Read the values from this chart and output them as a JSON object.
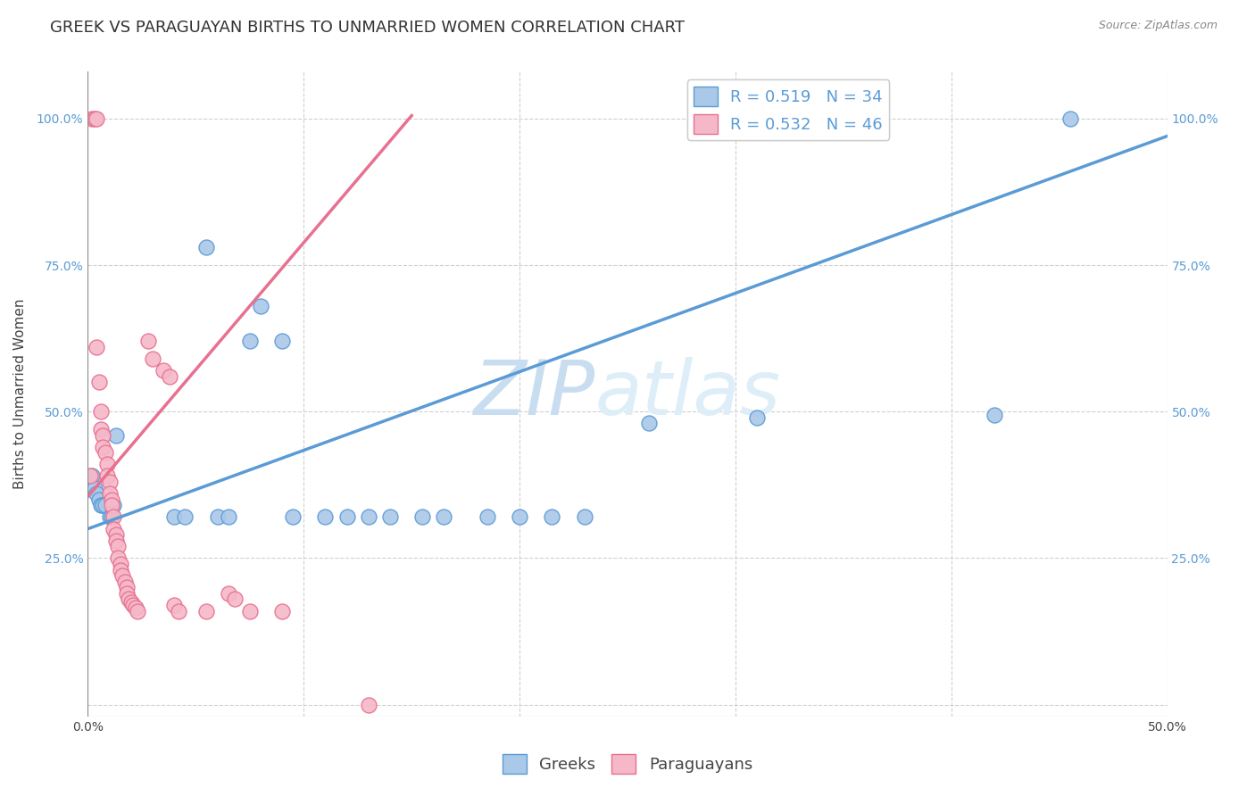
{
  "title": "GREEK VS PARAGUAYAN BIRTHS TO UNMARRIED WOMEN CORRELATION CHART",
  "source": "Source: ZipAtlas.com",
  "ylabel": "Births to Unmarried Women",
  "xlabel": "",
  "xlim": [
    0.0,
    0.5
  ],
  "ylim": [
    -0.02,
    1.08
  ],
  "x_axis_ticks": [
    0.0,
    0.05,
    0.1,
    0.15,
    0.2,
    0.25,
    0.3,
    0.35,
    0.4,
    0.45,
    0.5
  ],
  "y_axis_ticks": [
    0.0,
    0.25,
    0.5,
    0.75,
    1.0
  ],
  "ytick_labels_left": [
    "",
    "25.0%",
    "50.0%",
    "75.0%",
    "100.0%"
  ],
  "ytick_labels_right": [
    "",
    "25.0%",
    "50.0%",
    "75.0%",
    "100.0%"
  ],
  "greek_color": "#aac8e8",
  "greek_edge_color": "#5b9bd5",
  "paraguayan_color": "#f5b8c8",
  "paraguayan_edge_color": "#e87090",
  "greek_R": 0.519,
  "greek_N": 34,
  "paraguayan_R": 0.532,
  "paraguayan_N": 46,
  "watermark_zip": "ZIP",
  "watermark_atlas": "atlas",
  "watermark_color": "#ddeeff",
  "greek_scatter_x": [
    0.002,
    0.003,
    0.004,
    0.005,
    0.006,
    0.007,
    0.008,
    0.01,
    0.011,
    0.012,
    0.013,
    0.04,
    0.045,
    0.055,
    0.06,
    0.065,
    0.075,
    0.08,
    0.09,
    0.095,
    0.11,
    0.12,
    0.13,
    0.14,
    0.155,
    0.165,
    0.185,
    0.2,
    0.215,
    0.23,
    0.26,
    0.31,
    0.42,
    0.455
  ],
  "greek_scatter_y": [
    0.39,
    0.37,
    0.36,
    0.35,
    0.34,
    0.34,
    0.34,
    0.32,
    0.32,
    0.34,
    0.46,
    0.32,
    0.32,
    0.78,
    0.32,
    0.32,
    0.62,
    0.68,
    0.62,
    0.32,
    0.32,
    0.32,
    0.32,
    0.32,
    0.32,
    0.32,
    0.32,
    0.32,
    0.32,
    0.32,
    0.48,
    0.49,
    0.495,
    1.0
  ],
  "paraguayan_scatter_x": [
    0.001,
    0.002,
    0.003,
    0.004,
    0.004,
    0.005,
    0.006,
    0.006,
    0.007,
    0.007,
    0.008,
    0.009,
    0.009,
    0.01,
    0.01,
    0.011,
    0.011,
    0.012,
    0.012,
    0.013,
    0.013,
    0.014,
    0.014,
    0.015,
    0.015,
    0.016,
    0.017,
    0.018,
    0.018,
    0.019,
    0.02,
    0.021,
    0.022,
    0.023,
    0.028,
    0.03,
    0.035,
    0.038,
    0.04,
    0.042,
    0.055,
    0.065,
    0.068,
    0.075,
    0.09,
    0.13
  ],
  "paraguayan_scatter_y": [
    0.39,
    1.0,
    1.0,
    1.0,
    0.61,
    0.55,
    0.5,
    0.47,
    0.46,
    0.44,
    0.43,
    0.41,
    0.39,
    0.38,
    0.36,
    0.35,
    0.34,
    0.32,
    0.3,
    0.29,
    0.28,
    0.27,
    0.25,
    0.24,
    0.23,
    0.22,
    0.21,
    0.2,
    0.19,
    0.18,
    0.175,
    0.17,
    0.165,
    0.16,
    0.62,
    0.59,
    0.57,
    0.56,
    0.17,
    0.16,
    0.16,
    0.19,
    0.18,
    0.16,
    0.16,
    0.0
  ],
  "greek_trend_x": [
    0.0,
    0.5
  ],
  "greek_trend_y": [
    0.3,
    0.97
  ],
  "paraguayan_trend_x": [
    0.0,
    0.15
  ],
  "paraguayan_trend_y": [
    0.355,
    1.005
  ],
  "background_color": "#ffffff",
  "grid_color": "#d0d0d0",
  "title_fontsize": 13,
  "axis_label_fontsize": 11,
  "tick_fontsize": 10,
  "legend_fontsize": 13
}
